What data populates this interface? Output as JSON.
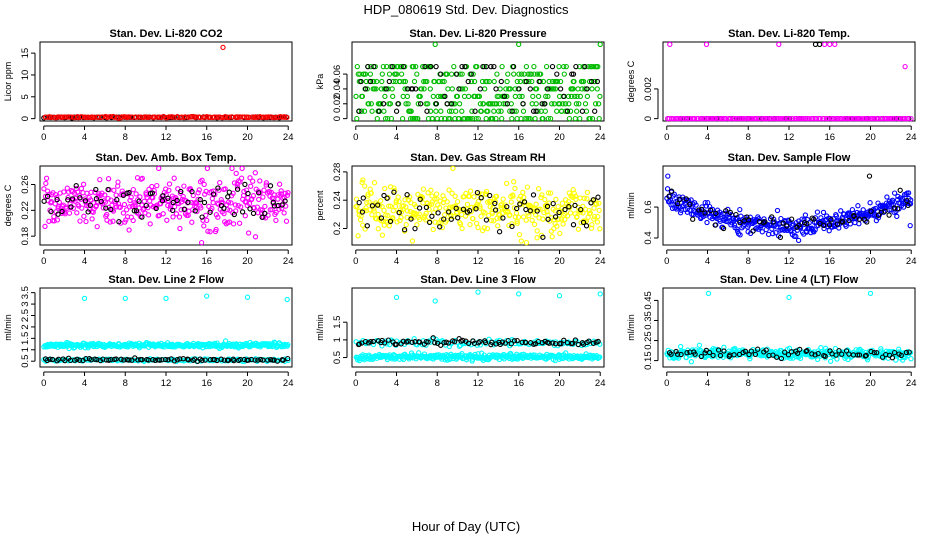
{
  "figure": {
    "title": "HDP_080619  Std. Dev. Diagnostics",
    "xlabel": "Hour of Day (UTC)"
  },
  "chart_data": [
    {
      "type": "scatter",
      "title": "Stan. Dev. Li-820 CO2",
      "ylabel": "Licor ppm",
      "xlim": [
        0,
        24
      ],
      "xticks": [
        0,
        4,
        8,
        12,
        16,
        20,
        24
      ],
      "ylim": [
        0,
        17
      ],
      "yticks": [
        0,
        5,
        10,
        15
      ],
      "series": [
        {
          "color": "#000000",
          "pattern": "flat",
          "count": 90,
          "mean": 0.3,
          "sd": 0.05
        },
        {
          "color": "#ff0000",
          "pattern": "flat",
          "count": 130,
          "mean": 0.35,
          "sd": 0.06,
          "outliers": [
            [
              17.6,
              16.3
            ]
          ]
        }
      ]
    },
    {
      "type": "scatter",
      "title": "Stan. Dev. Li-820 Pressure",
      "ylabel": "kPa",
      "xlim": [
        0,
        24
      ],
      "xticks": [
        0,
        4,
        8,
        12,
        16,
        20,
        24
      ],
      "ylim": [
        0,
        0.1
      ],
      "yticks": [
        0,
        0.02,
        0.04,
        0.06
      ],
      "series": [
        {
          "color": "#00bb00",
          "pattern": "quantized",
          "levels": [
            0,
            0.01,
            0.02,
            0.03,
            0.04,
            0.05,
            0.06,
            0.07
          ],
          "count": 380,
          "outliers": [
            [
              7.8,
              0.1
            ],
            [
              16.0,
              0.1
            ],
            [
              24.0,
              0.1
            ]
          ]
        },
        {
          "color": "#000000",
          "pattern": "quantized",
          "levels": [
            0.01,
            0.02,
            0.03,
            0.04,
            0.05,
            0.06,
            0.07
          ],
          "count": 70
        }
      ]
    },
    {
      "type": "scatter",
      "title": "Stan. Dev. Li-820 Temp.",
      "ylabel": "degrees C",
      "xlim": [
        0,
        24
      ],
      "xticks": [
        0,
        4,
        8,
        12,
        16,
        20,
        24
      ],
      "ylim": [
        0,
        0.005
      ],
      "yticks": [
        0,
        0.002
      ],
      "series": [
        {
          "color": "#000000",
          "pattern": "zero",
          "count": 60,
          "outliers": [
            [
              14.6,
              0.005
            ],
            [
              15.0,
              0.005
            ]
          ]
        },
        {
          "color": "#ff00ff",
          "pattern": "zero",
          "count": 150,
          "outliers": [
            [
              0.3,
              0.005
            ],
            [
              3.9,
              0.005
            ],
            [
              11.0,
              0.005
            ],
            [
              15.5,
              0.005
            ],
            [
              16.0,
              0.005
            ],
            [
              16.5,
              0.005
            ],
            [
              23.4,
              0.0035
            ]
          ]
        }
      ]
    },
    {
      "type": "scatter",
      "title": "Stan. Dev. Amb. Box Temp.",
      "ylabel": "degrees C",
      "xlim": [
        0,
        24
      ],
      "xticks": [
        0,
        4,
        8,
        12,
        16,
        20,
        24
      ],
      "ylim": [
        0.17,
        0.285
      ],
      "yticks": [
        0.18,
        0.22,
        0.26
      ],
      "series": [
        {
          "color": "#ff00ff",
          "pattern": "noise",
          "count": 380,
          "mean": 0.233,
          "sd": 0.018
        },
        {
          "color": "#000000",
          "pattern": "noise",
          "count": 70,
          "mean": 0.232,
          "sd": 0.014
        }
      ]
    },
    {
      "type": "scatter",
      "title": "Stan. Dev. Gas Stream RH",
      "ylabel": "percent",
      "xlim": [
        0,
        24
      ],
      "xticks": [
        0,
        4,
        8,
        12,
        16,
        20,
        24
      ],
      "ylim": [
        0.18,
        0.285
      ],
      "yticks": [
        0.2,
        0.24,
        0.28
      ],
      "series": [
        {
          "color": "#ffff00",
          "pattern": "noise",
          "count": 380,
          "mean": 0.227,
          "sd": 0.017
        },
        {
          "color": "#000000",
          "pattern": "noise",
          "count": 65,
          "mean": 0.225,
          "sd": 0.014
        }
      ]
    },
    {
      "type": "scatter",
      "title": "Stan. Dev. Sample Flow",
      "ylabel": "ml/min",
      "xlim": [
        0,
        24
      ],
      "xticks": [
        0,
        4,
        8,
        12,
        16,
        20,
        24
      ],
      "ylim": [
        0.37,
        0.85
      ],
      "yticks": [
        0.4,
        0.6
      ],
      "series": [
        {
          "color": "#0000ff",
          "pattern": "valley",
          "count": 380,
          "center": 12,
          "low": 0.48,
          "high": 0.66,
          "sd": 0.03,
          "outliers": [
            [
              0.1,
              0.8
            ],
            [
              7.2,
              0.42
            ],
            [
              23.9,
              0.48
            ]
          ]
        },
        {
          "color": "#000000",
          "pattern": "valley",
          "count": 60,
          "center": 12,
          "low": 0.48,
          "high": 0.66,
          "sd": 0.03,
          "outliers": [
            [
              19.9,
              0.8
            ]
          ]
        }
      ]
    },
    {
      "type": "scatter",
      "title": "Stan. Dev. Line 2 Flow",
      "ylabel": "ml/min",
      "xlim": [
        0,
        24
      ],
      "xticks": [
        0,
        4,
        8,
        12,
        16,
        20,
        24
      ],
      "ylim": [
        0.35,
        3.6
      ],
      "yticks": [
        0.5,
        1.0,
        1.5,
        2.0,
        2.5,
        3.0,
        3.5
      ],
      "series": [
        {
          "color": "#00ffff",
          "pattern": "band",
          "count": 330,
          "mean": 1.2,
          "sd": 0.05,
          "outliers": [
            [
              4.0,
              3.25
            ],
            [
              8.0,
              3.25
            ],
            [
              12.0,
              3.25
            ],
            [
              16.0,
              3.35
            ],
            [
              20.0,
              3.3
            ],
            [
              23.9,
              3.2
            ]
          ]
        },
        {
          "color": "#00ffff",
          "pattern": "band",
          "count": 150,
          "mean": 0.55,
          "sd": 0.03
        },
        {
          "color": "#000000",
          "pattern": "band",
          "count": 85,
          "mean": 0.56,
          "sd": 0.03
        }
      ]
    },
    {
      "type": "scatter",
      "title": "Stan. Dev. Line 3 Flow",
      "ylabel": "ml/min",
      "xlim": [
        0,
        24
      ],
      "xticks": [
        0,
        4,
        8,
        12,
        16,
        20,
        24
      ],
      "ylim": [
        0.3,
        2.4
      ],
      "yticks": [
        0.5,
        1.0,
        1.5
      ],
      "series": [
        {
          "color": "#00ffff",
          "pattern": "band",
          "count": 340,
          "mean": 0.52,
          "sd": 0.04,
          "outliers": [
            [
              4.0,
              2.2
            ],
            [
              7.8,
              2.1
            ],
            [
              12.0,
              2.35
            ],
            [
              16.0,
              2.3
            ],
            [
              20.0,
              2.25
            ],
            [
              24.0,
              2.3
            ]
          ]
        },
        {
          "color": "#00ffff",
          "pattern": "band",
          "count": 120,
          "mean": 0.92,
          "sd": 0.05
        },
        {
          "color": "#000000",
          "pattern": "band",
          "count": 85,
          "mean": 0.93,
          "sd": 0.04
        }
      ]
    },
    {
      "type": "scatter",
      "title": "Stan. Dev. Line 4 (LT) Flow",
      "ylabel": "ml/min",
      "xlim": [
        0,
        24
      ],
      "xticks": [
        0,
        4,
        8,
        12,
        16,
        20,
        24
      ],
      "ylim": [
        0.13,
        0.5
      ],
      "yticks": [
        0.15,
        0.25,
        0.35,
        0.45
      ],
      "series": [
        {
          "color": "#00ffff",
          "pattern": "band",
          "count": 380,
          "mean": 0.183,
          "sd": 0.012,
          "outliers": [
            [
              4.1,
              0.485
            ],
            [
              12.0,
              0.465
            ],
            [
              20.0,
              0.485
            ]
          ]
        },
        {
          "color": "#000000",
          "pattern": "band",
          "count": 70,
          "mean": 0.185,
          "sd": 0.01
        }
      ]
    }
  ]
}
